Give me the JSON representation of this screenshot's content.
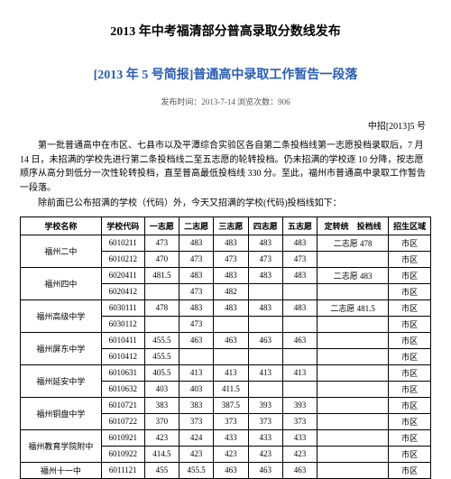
{
  "main_title": "2013 年中考福清部分普高录取分数线发布",
  "sub_title": "[2013 年 5 号简报]普通高中录取工作暂告一段落",
  "meta_line": "发布时间：2013-7-14  浏览次数：906",
  "doc_number": "中招[2013]5 号",
  "para1": "第一批普通高中在市区、七县市以及平潭综合实验区各自第二条投档线第一志愿投档录取后，7 月 14 日，未招满的学校先进行第二条投档线二至五志愿的轮转投档。仍未招满的学校逐 10 分降，按志愿顺序从高分到低分一次性轮转投档，直至普高最低投档线 330 分。至此，福州市普通高中录取工作暂告一段落。",
  "para2": "除前面已公布招满的学校（代码）外，今天又招满的学校(代码)投档线如下：",
  "headers": {
    "c0": "学校名称",
    "c1": "学校代码",
    "c2": "一志愿",
    "c3": "二志愿",
    "c4": "三志愿",
    "c5": "四志愿",
    "c6": "五志愿",
    "c7": "定转统　投档线",
    "c8": "招生区域"
  },
  "rows": [
    {
      "school": "福州二中",
      "span": 2,
      "cells": [
        [
          "6010211",
          "473",
          "483",
          "483",
          "483",
          "483",
          "二志愿 478",
          "市区"
        ],
        [
          "6010212",
          "470",
          "473",
          "473",
          "473",
          "473",
          "",
          "市区"
        ]
      ]
    },
    {
      "school": "福州四中",
      "span": 2,
      "cells": [
        [
          "6020411",
          "481.5",
          "483",
          "483",
          "483",
          "483",
          "二志愿 483",
          "市区"
        ],
        [
          "6020412",
          "",
          "473",
          "482",
          "",
          "",
          "",
          "市区"
        ]
      ]
    },
    {
      "school": "福州高级中学",
      "span": 2,
      "cells": [
        [
          "6030111",
          "478",
          "483",
          "483",
          "483",
          "483",
          "二志愿 481.5",
          "市区"
        ],
        [
          "6030112",
          "",
          "473",
          "",
          "",
          "",
          "",
          "市区"
        ]
      ]
    },
    {
      "school": "福州屏东中学",
      "span": 2,
      "cells": [
        [
          "6010411",
          "455.5",
          "463",
          "463",
          "463",
          "463",
          "",
          "市区"
        ],
        [
          "6010412",
          "455.5",
          "",
          "",
          "",
          "",
          "",
          "市区"
        ]
      ]
    },
    {
      "school": "福州延安中学",
      "span": 2,
      "cells": [
        [
          "6010631",
          "405.5",
          "413",
          "413",
          "413",
          "413",
          "",
          "市区"
        ],
        [
          "6010632",
          "403",
          "403",
          "411.5",
          "",
          "",
          "",
          "市区"
        ]
      ]
    },
    {
      "school": "福州铜盘中学",
      "span": 2,
      "cells": [
        [
          "6010721",
          "383",
          "383",
          "387.5",
          "393",
          "393",
          "",
          "市区"
        ],
        [
          "6010722",
          "370",
          "373",
          "373",
          "373",
          "373",
          "",
          "市区"
        ]
      ]
    },
    {
      "school": "福州教育学院附中",
      "span": 2,
      "cells": [
        [
          "6010921",
          "423",
          "424",
          "433",
          "433",
          "433",
          "",
          "市区"
        ],
        [
          "6010922",
          "414.5",
          "423",
          "423",
          "423",
          "423",
          "",
          "市区"
        ]
      ]
    },
    {
      "school": "福州十一中",
      "span": 1,
      "cells": [
        [
          "6011121",
          "455",
          "455.5",
          "463",
          "463",
          "463",
          "",
          "市区"
        ]
      ]
    }
  ]
}
